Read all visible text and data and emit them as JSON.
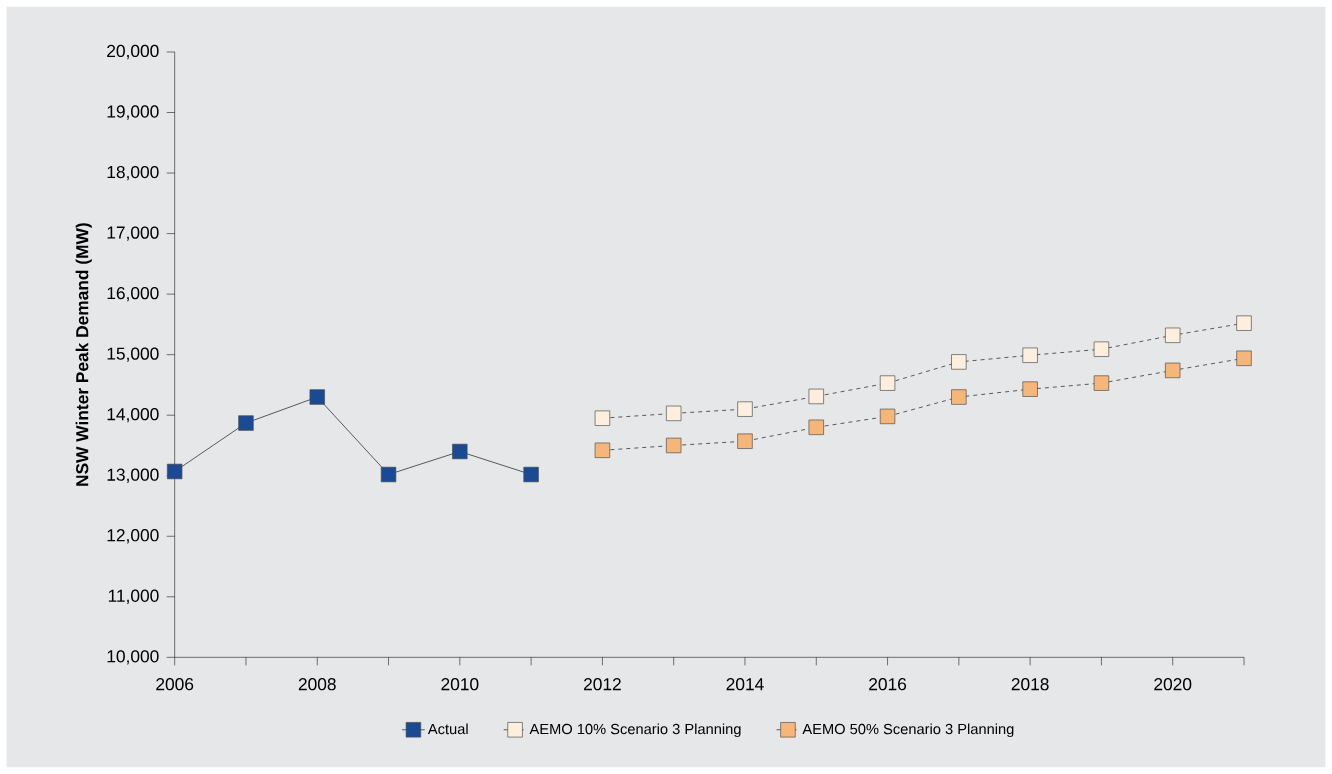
{
  "chart_data": {
    "type": "line",
    "ylabel": "NSW Winter Peak Demand (MW)",
    "x": [
      2006,
      2007,
      2008,
      2009,
      2010,
      2011,
      2012,
      2013,
      2014,
      2015,
      2016,
      2017,
      2018,
      2019,
      2020,
      2021
    ],
    "series": [
      {
        "name": "Actual",
        "color": "#1b4a94",
        "line_style": "solid",
        "values": [
          13070,
          13870,
          14300,
          13020,
          13400,
          13020,
          null,
          null,
          null,
          null,
          null,
          null,
          null,
          null,
          null,
          null
        ]
      },
      {
        "name": "AEMO 10% Scenario 3 Planning",
        "color": "#fdeedd",
        "line_style": "dashed",
        "values": [
          null,
          null,
          null,
          null,
          null,
          null,
          13950,
          14030,
          14100,
          14310,
          14530,
          14880,
          14990,
          15090,
          15320,
          15520
        ]
      },
      {
        "name": "AEMO 50% Scenario 3 Planning",
        "color": "#f6b67a",
        "line_style": "dashed",
        "values": [
          null,
          null,
          null,
          null,
          null,
          null,
          13420,
          13500,
          13570,
          13800,
          13980,
          14300,
          14430,
          14530,
          14740,
          14940
        ]
      }
    ],
    "xlim": [
      2006,
      2021
    ],
    "xticks": [
      2006,
      {
        "value": 2007,
        "label": null
      },
      2008,
      {
        "value": 2009,
        "label": null
      },
      2010,
      {
        "value": 2011,
        "label": null
      },
      2012,
      {
        "value": 2013,
        "label": null
      },
      2014,
      {
        "value": 2015,
        "label": null
      },
      2016,
      {
        "value": 2017,
        "label": null
      },
      2018,
      {
        "value": 2019,
        "label": null
      },
      2020,
      {
        "value": 2021,
        "label": null
      }
    ],
    "ylim": [
      10000,
      20000
    ],
    "yticks": [
      {
        "value": 10000,
        "label": "10,000"
      },
      {
        "value": 11000,
        "label": "11,000"
      },
      {
        "value": 12000,
        "label": "12,000"
      },
      {
        "value": 13000,
        "label": "13,000"
      },
      {
        "value": 14000,
        "label": "14,000"
      },
      {
        "value": 15000,
        "label": "15,000"
      },
      {
        "value": 16000,
        "label": "16,000"
      },
      {
        "value": 17000,
        "label": "17,000"
      },
      {
        "value": 18000,
        "label": "18,000"
      },
      {
        "value": 19000,
        "label": "19,000"
      },
      {
        "value": 20000,
        "label": "20,000"
      }
    ],
    "grid": false,
    "legend": "bottom",
    "marker": "square"
  }
}
